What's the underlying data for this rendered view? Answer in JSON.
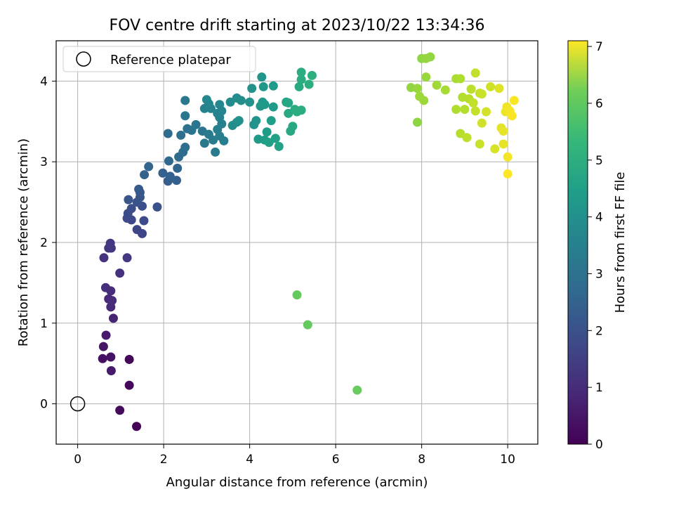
{
  "chart_data": {
    "type": "scatter",
    "title": "FOV centre drift starting at 2023/10/22 13:34:36",
    "xlabel": "Angular distance from reference (arcmin)",
    "ylabel": "Rotation from reference (arcmin)",
    "xlim": [
      -0.5,
      10.7
    ],
    "ylim": [
      -0.5,
      4.5
    ],
    "xticks": [
      "0",
      "2",
      "4",
      "6",
      "8",
      "10"
    ],
    "yticks": [
      "0",
      "1",
      "2",
      "3",
      "4"
    ],
    "grid": true,
    "legend": {
      "position": "top-left",
      "label": "Reference platepar"
    },
    "reference_point": {
      "x": 0,
      "y": 0
    },
    "colorbar": {
      "label": "Hours from first FF file",
      "colormap": "viridis",
      "range": [
        0,
        7.1
      ],
      "ticks": [
        "0",
        "1",
        "2",
        "3",
        "4",
        "5",
        "6",
        "7"
      ]
    },
    "points": [
      {
        "x": 1.37,
        "y": -0.28,
        "c": 0.05
      },
      {
        "x": 0.98,
        "y": -0.08,
        "c": 0.2
      },
      {
        "x": 1.2,
        "y": 0.23,
        "c": 0.15
      },
      {
        "x": 1.2,
        "y": 0.55,
        "c": 0.1
      },
      {
        "x": 0.58,
        "y": 0.56,
        "c": 0.3
      },
      {
        "x": 0.77,
        "y": 0.58,
        "c": 0.35
      },
      {
        "x": 0.6,
        "y": 0.71,
        "c": 0.4
      },
      {
        "x": 0.78,
        "y": 0.41,
        "c": 0.5
      },
      {
        "x": 0.66,
        "y": 0.85,
        "c": 0.5
      },
      {
        "x": 0.83,
        "y": 1.06,
        "c": 0.7
      },
      {
        "x": 0.72,
        "y": 1.3,
        "c": 0.8
      },
      {
        "x": 0.77,
        "y": 1.2,
        "c": 0.85
      },
      {
        "x": 0.8,
        "y": 1.28,
        "c": 0.9
      },
      {
        "x": 0.77,
        "y": 1.4,
        "c": 0.9
      },
      {
        "x": 0.65,
        "y": 1.44,
        "c": 0.95
      },
      {
        "x": 0.98,
        "y": 1.62,
        "c": 1.0
      },
      {
        "x": 0.61,
        "y": 1.81,
        "c": 1.05
      },
      {
        "x": 1.15,
        "y": 1.81,
        "c": 1.2
      },
      {
        "x": 0.72,
        "y": 1.93,
        "c": 1.1
      },
      {
        "x": 0.78,
        "y": 1.93,
        "c": 1.15
      },
      {
        "x": 0.76,
        "y": 1.99,
        "c": 1.2
      },
      {
        "x": 1.5,
        "y": 2.11,
        "c": 1.5
      },
      {
        "x": 1.38,
        "y": 2.16,
        "c": 1.5
      },
      {
        "x": 1.54,
        "y": 2.27,
        "c": 1.6
      },
      {
        "x": 1.25,
        "y": 2.28,
        "c": 1.55
      },
      {
        "x": 1.15,
        "y": 2.3,
        "c": 1.6
      },
      {
        "x": 1.17,
        "y": 2.36,
        "c": 1.65
      },
      {
        "x": 1.25,
        "y": 2.42,
        "c": 1.7
      },
      {
        "x": 1.5,
        "y": 2.45,
        "c": 1.75
      },
      {
        "x": 1.85,
        "y": 2.44,
        "c": 1.8
      },
      {
        "x": 1.38,
        "y": 2.5,
        "c": 1.85
      },
      {
        "x": 1.18,
        "y": 2.53,
        "c": 1.9
      },
      {
        "x": 1.45,
        "y": 2.56,
        "c": 1.9
      },
      {
        "x": 1.45,
        "y": 2.62,
        "c": 1.95
      },
      {
        "x": 1.42,
        "y": 2.66,
        "c": 2.0
      },
      {
        "x": 2.1,
        "y": 2.76,
        "c": 2.1
      },
      {
        "x": 2.3,
        "y": 2.77,
        "c": 2.15
      },
      {
        "x": 2.15,
        "y": 2.82,
        "c": 2.2
      },
      {
        "x": 1.98,
        "y": 2.86,
        "c": 2.2
      },
      {
        "x": 1.55,
        "y": 2.84,
        "c": 2.25
      },
      {
        "x": 1.65,
        "y": 2.94,
        "c": 2.3
      },
      {
        "x": 2.32,
        "y": 2.92,
        "c": 2.3
      },
      {
        "x": 2.12,
        "y": 3.01,
        "c": 2.4
      },
      {
        "x": 2.35,
        "y": 3.06,
        "c": 2.45
      },
      {
        "x": 2.45,
        "y": 3.12,
        "c": 2.5
      },
      {
        "x": 2.5,
        "y": 3.18,
        "c": 2.55
      },
      {
        "x": 2.1,
        "y": 3.35,
        "c": 2.5
      },
      {
        "x": 2.4,
        "y": 3.33,
        "c": 2.6
      },
      {
        "x": 2.55,
        "y": 3.41,
        "c": 2.65
      },
      {
        "x": 2.65,
        "y": 3.39,
        "c": 2.7
      },
      {
        "x": 2.75,
        "y": 3.46,
        "c": 2.75
      },
      {
        "x": 2.5,
        "y": 3.57,
        "c": 2.8
      },
      {
        "x": 2.9,
        "y": 3.38,
        "c": 2.8
      },
      {
        "x": 2.95,
        "y": 3.23,
        "c": 2.85
      },
      {
        "x": 3.05,
        "y": 3.34,
        "c": 2.9
      },
      {
        "x": 3.2,
        "y": 3.12,
        "c": 2.9
      },
      {
        "x": 3.15,
        "y": 3.27,
        "c": 2.95
      },
      {
        "x": 3.3,
        "y": 3.32,
        "c": 3.0
      },
      {
        "x": 3.4,
        "y": 3.26,
        "c": 3.0
      },
      {
        "x": 3.25,
        "y": 3.4,
        "c": 3.05
      },
      {
        "x": 3.35,
        "y": 3.47,
        "c": 3.1
      },
      {
        "x": 3.3,
        "y": 3.55,
        "c": 3.1
      },
      {
        "x": 3.25,
        "y": 3.6,
        "c": 3.15
      },
      {
        "x": 3.35,
        "y": 3.63,
        "c": 3.2
      },
      {
        "x": 3.1,
        "y": 3.66,
        "c": 3.2
      },
      {
        "x": 2.95,
        "y": 3.66,
        "c": 3.15
      },
      {
        "x": 3.05,
        "y": 3.72,
        "c": 3.25
      },
      {
        "x": 3.0,
        "y": 3.77,
        "c": 3.3
      },
      {
        "x": 3.3,
        "y": 3.71,
        "c": 3.3
      },
      {
        "x": 3.55,
        "y": 3.74,
        "c": 3.4
      },
      {
        "x": 3.7,
        "y": 3.79,
        "c": 3.45
      },
      {
        "x": 3.8,
        "y": 3.76,
        "c": 3.5
      },
      {
        "x": 3.6,
        "y": 3.45,
        "c": 3.45
      },
      {
        "x": 3.7,
        "y": 3.49,
        "c": 3.5
      },
      {
        "x": 3.75,
        "y": 3.51,
        "c": 3.55
      },
      {
        "x": 2.5,
        "y": 3.76,
        "c": 2.85
      },
      {
        "x": 4.0,
        "y": 3.74,
        "c": 3.6
      },
      {
        "x": 4.05,
        "y": 3.91,
        "c": 3.6
      },
      {
        "x": 4.15,
        "y": 3.51,
        "c": 3.65
      },
      {
        "x": 4.1,
        "y": 3.46,
        "c": 3.7
      },
      {
        "x": 4.25,
        "y": 3.69,
        "c": 3.75
      },
      {
        "x": 4.3,
        "y": 3.74,
        "c": 3.8
      },
      {
        "x": 4.35,
        "y": 3.71,
        "c": 3.8
      },
      {
        "x": 4.28,
        "y": 4.05,
        "c": 3.7
      },
      {
        "x": 4.32,
        "y": 3.93,
        "c": 3.75
      },
      {
        "x": 4.55,
        "y": 3.94,
        "c": 3.85
      },
      {
        "x": 4.55,
        "y": 3.68,
        "c": 3.9
      },
      {
        "x": 4.4,
        "y": 3.37,
        "c": 3.9
      },
      {
        "x": 4.5,
        "y": 3.51,
        "c": 3.95
      },
      {
        "x": 4.35,
        "y": 3.27,
        "c": 3.95
      },
      {
        "x": 4.2,
        "y": 3.28,
        "c": 3.85
      },
      {
        "x": 4.45,
        "y": 3.24,
        "c": 4.0
      },
      {
        "x": 4.6,
        "y": 3.29,
        "c": 4.05
      },
      {
        "x": 4.68,
        "y": 3.19,
        "c": 4.1
      },
      {
        "x": 4.85,
        "y": 3.74,
        "c": 4.15
      },
      {
        "x": 4.9,
        "y": 3.73,
        "c": 4.2
      },
      {
        "x": 4.9,
        "y": 3.6,
        "c": 4.25
      },
      {
        "x": 4.95,
        "y": 3.38,
        "c": 4.25
      },
      {
        "x": 5.0,
        "y": 3.44,
        "c": 4.3
      },
      {
        "x": 5.05,
        "y": 3.65,
        "c": 4.35
      },
      {
        "x": 5.1,
        "y": 3.62,
        "c": 4.4
      },
      {
        "x": 5.2,
        "y": 3.64,
        "c": 4.4
      },
      {
        "x": 5.15,
        "y": 3.93,
        "c": 4.3
      },
      {
        "x": 5.2,
        "y": 4.02,
        "c": 4.35
      },
      {
        "x": 5.2,
        "y": 4.11,
        "c": 4.4
      },
      {
        "x": 5.38,
        "y": 3.96,
        "c": 4.45
      },
      {
        "x": 5.45,
        "y": 4.07,
        "c": 4.45
      },
      {
        "x": 5.1,
        "y": 1.35,
        "c": 5.4
      },
      {
        "x": 5.35,
        "y": 0.98,
        "c": 5.4
      },
      {
        "x": 6.5,
        "y": 0.17,
        "c": 5.45
      },
      {
        "x": 7.9,
        "y": 3.49,
        "c": 5.9
      },
      {
        "x": 7.75,
        "y": 3.92,
        "c": 5.95
      },
      {
        "x": 7.9,
        "y": 3.91,
        "c": 6.0
      },
      {
        "x": 7.95,
        "y": 3.81,
        "c": 6.05
      },
      {
        "x": 8.05,
        "y": 3.76,
        "c": 6.05
      },
      {
        "x": 8.0,
        "y": 4.28,
        "c": 5.9
      },
      {
        "x": 8.1,
        "y": 4.28,
        "c": 5.95
      },
      {
        "x": 8.2,
        "y": 4.3,
        "c": 5.95
      },
      {
        "x": 8.1,
        "y": 4.05,
        "c": 6.0
      },
      {
        "x": 8.35,
        "y": 3.95,
        "c": 6.1
      },
      {
        "x": 8.55,
        "y": 3.89,
        "c": 6.15
      },
      {
        "x": 8.8,
        "y": 4.03,
        "c": 6.2
      },
      {
        "x": 8.9,
        "y": 4.03,
        "c": 6.25
      },
      {
        "x": 8.8,
        "y": 3.65,
        "c": 6.25
      },
      {
        "x": 8.95,
        "y": 3.8,
        "c": 6.3
      },
      {
        "x": 9.0,
        "y": 3.65,
        "c": 6.3
      },
      {
        "x": 8.9,
        "y": 3.35,
        "c": 6.35
      },
      {
        "x": 9.05,
        "y": 3.3,
        "c": 6.4
      },
      {
        "x": 9.1,
        "y": 3.78,
        "c": 6.35
      },
      {
        "x": 9.15,
        "y": 3.9,
        "c": 6.4
      },
      {
        "x": 9.2,
        "y": 3.73,
        "c": 6.45
      },
      {
        "x": 9.25,
        "y": 3.63,
        "c": 6.5
      },
      {
        "x": 9.25,
        "y": 4.1,
        "c": 6.45
      },
      {
        "x": 9.35,
        "y": 3.85,
        "c": 6.5
      },
      {
        "x": 9.4,
        "y": 3.84,
        "c": 6.55
      },
      {
        "x": 9.35,
        "y": 3.22,
        "c": 6.55
      },
      {
        "x": 9.4,
        "y": 3.48,
        "c": 6.6
      },
      {
        "x": 9.5,
        "y": 3.62,
        "c": 6.65
      },
      {
        "x": 9.6,
        "y": 3.93,
        "c": 6.6
      },
      {
        "x": 9.7,
        "y": 3.16,
        "c": 6.7
      },
      {
        "x": 9.8,
        "y": 3.91,
        "c": 6.75
      },
      {
        "x": 9.85,
        "y": 3.42,
        "c": 6.8
      },
      {
        "x": 9.9,
        "y": 3.22,
        "c": 6.85
      },
      {
        "x": 9.9,
        "y": 3.38,
        "c": 6.85
      },
      {
        "x": 9.95,
        "y": 3.62,
        "c": 6.9
      },
      {
        "x": 9.98,
        "y": 3.68,
        "c": 6.95
      },
      {
        "x": 10.0,
        "y": 3.06,
        "c": 7.0
      },
      {
        "x": 10.05,
        "y": 3.63,
        "c": 7.0
      },
      {
        "x": 10.1,
        "y": 3.57,
        "c": 7.05
      },
      {
        "x": 10.15,
        "y": 3.76,
        "c": 7.05
      },
      {
        "x": 10.0,
        "y": 2.85,
        "c": 7.1
      }
    ]
  }
}
